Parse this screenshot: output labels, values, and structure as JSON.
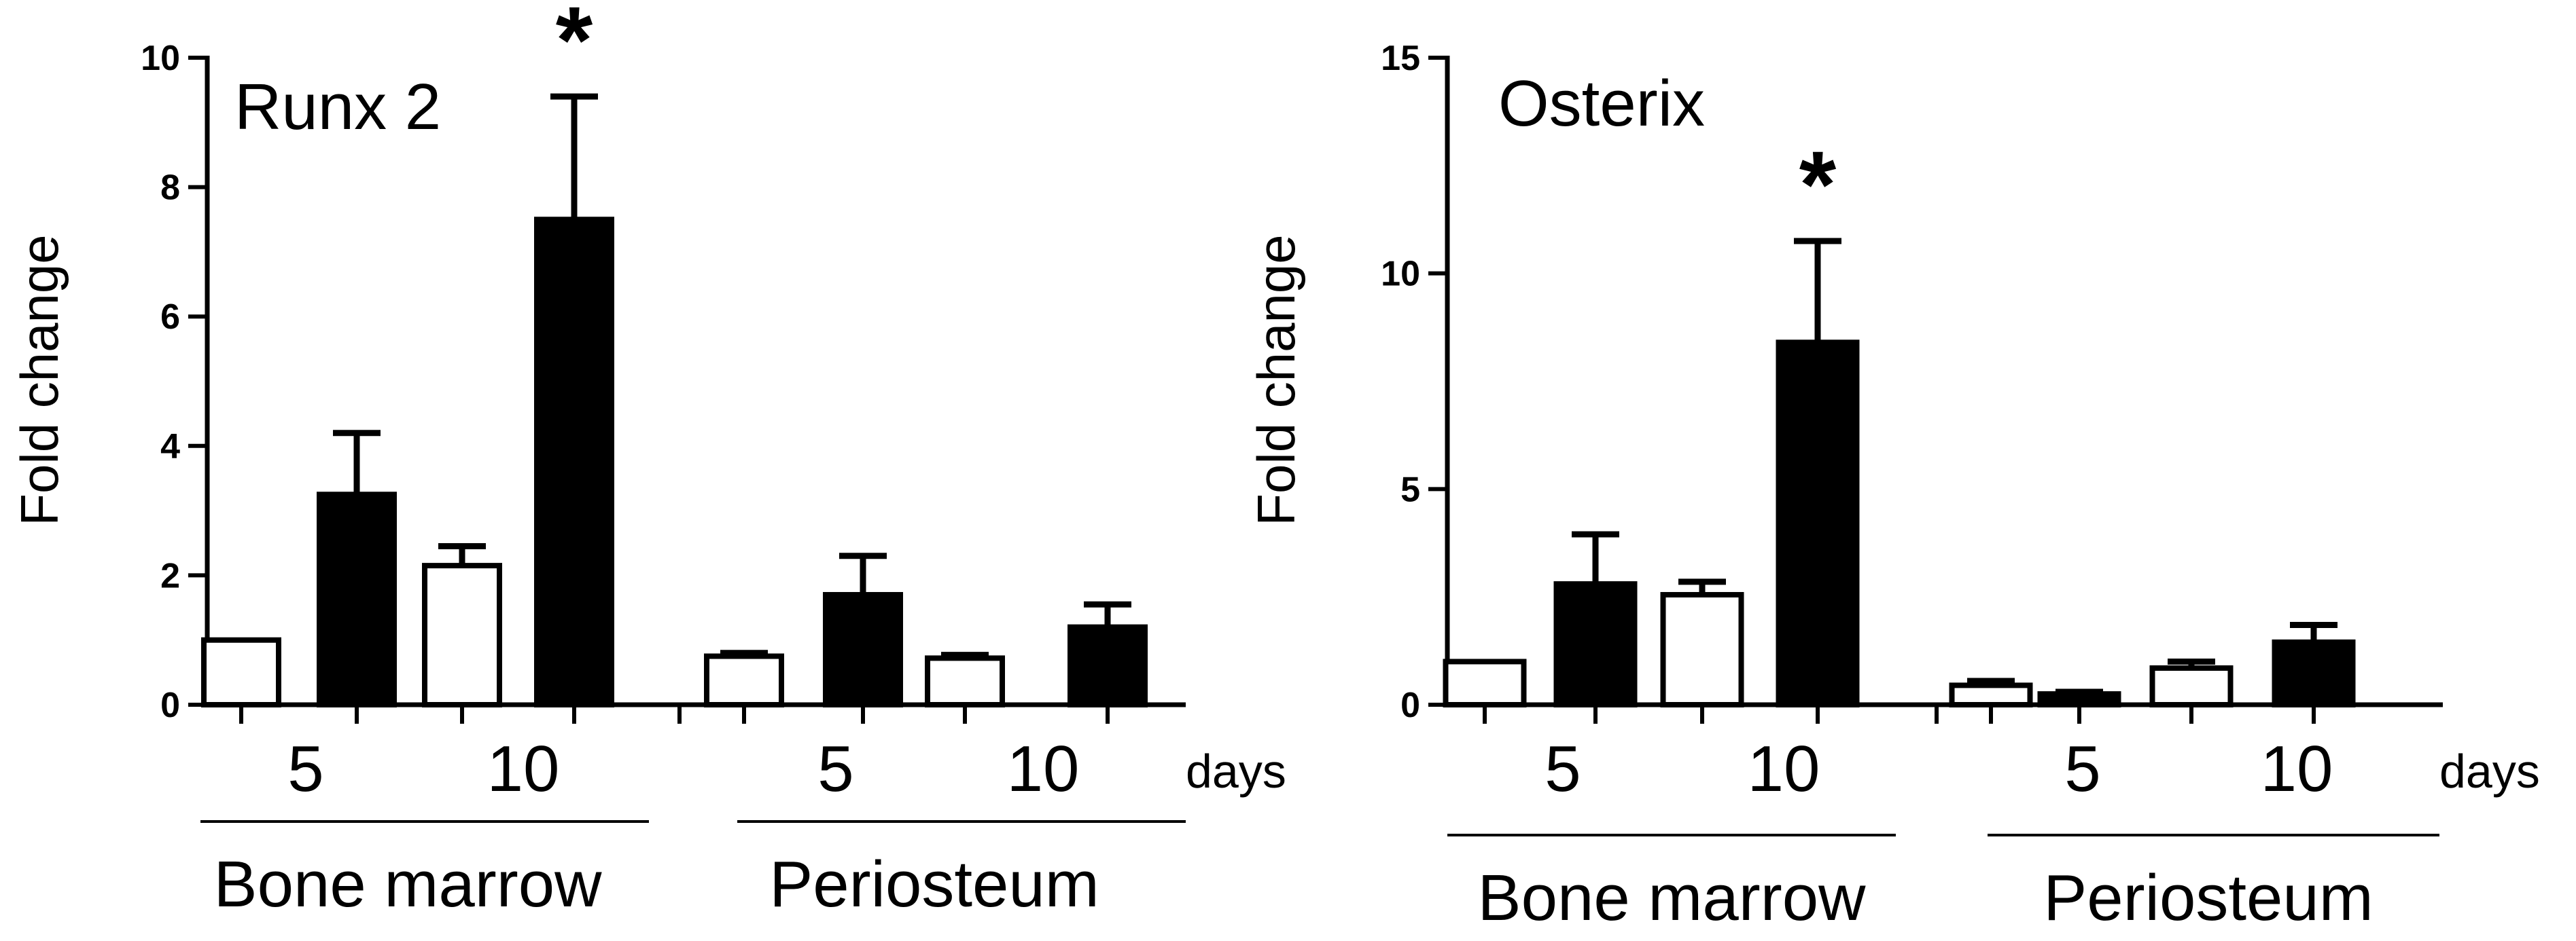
{
  "chart_data": [
    {
      "type": "bar",
      "title": "Runx 2",
      "ylabel": "Fold change",
      "ylim": [
        0,
        10
      ],
      "yticks": [
        0,
        2,
        4,
        6,
        8,
        10
      ],
      "x_unit_label": "days",
      "groups": [
        {
          "label": "Bone marrow",
          "day_labels": [
            "5",
            "10"
          ]
        },
        {
          "label": "Periosteum",
          "day_labels": [
            "5",
            "10"
          ]
        }
      ],
      "bars": [
        {
          "group": 0,
          "day": "5",
          "fill": "white",
          "value": 1.0,
          "error": 0
        },
        {
          "group": 0,
          "day": "5",
          "fill": "black",
          "value": 3.25,
          "error": 0.95
        },
        {
          "group": 0,
          "day": "10",
          "fill": "white",
          "value": 2.15,
          "error": 0.3
        },
        {
          "group": 0,
          "day": "10",
          "fill": "black",
          "value": 7.5,
          "error": 1.9,
          "significance": "*"
        },
        {
          "group": 1,
          "day": "5",
          "fill": "white",
          "value": 0.75,
          "error": 0.05
        },
        {
          "group": 1,
          "day": "5",
          "fill": "black",
          "value": 1.7,
          "error": 0.6
        },
        {
          "group": 1,
          "day": "10",
          "fill": "white",
          "value": 0.72,
          "error": 0.05
        },
        {
          "group": 1,
          "day": "10",
          "fill": "black",
          "value": 1.2,
          "error": 0.35
        }
      ]
    },
    {
      "type": "bar",
      "title": "Osterix",
      "ylabel": "Fold change",
      "ylim": [
        0,
        15
      ],
      "yticks": [
        0,
        5,
        10,
        15
      ],
      "x_unit_label": "days",
      "groups": [
        {
          "label": "Bone marrow",
          "day_labels": [
            "5",
            "10"
          ]
        },
        {
          "label": "Periosteum",
          "day_labels": [
            "5",
            "10"
          ]
        }
      ],
      "bars": [
        {
          "group": 0,
          "day": "5",
          "fill": "white",
          "value": 1.0,
          "error": 0
        },
        {
          "group": 0,
          "day": "5",
          "fill": "black",
          "value": 2.8,
          "error": 1.15
        },
        {
          "group": 0,
          "day": "10",
          "fill": "white",
          "value": 2.55,
          "error": 0.3
        },
        {
          "group": 0,
          "day": "10",
          "fill": "black",
          "value": 8.4,
          "error": 2.35,
          "significance": "*"
        },
        {
          "group": 1,
          "day": "5",
          "fill": "white",
          "value": 0.45,
          "error": 0.1
        },
        {
          "group": 1,
          "day": "5",
          "fill": "black",
          "value": 0.25,
          "error": 0.05
        },
        {
          "group": 1,
          "day": "10",
          "fill": "white",
          "value": 0.85,
          "error": 0.15
        },
        {
          "group": 1,
          "day": "10",
          "fill": "black",
          "value": 1.45,
          "error": 0.4
        }
      ]
    }
  ]
}
